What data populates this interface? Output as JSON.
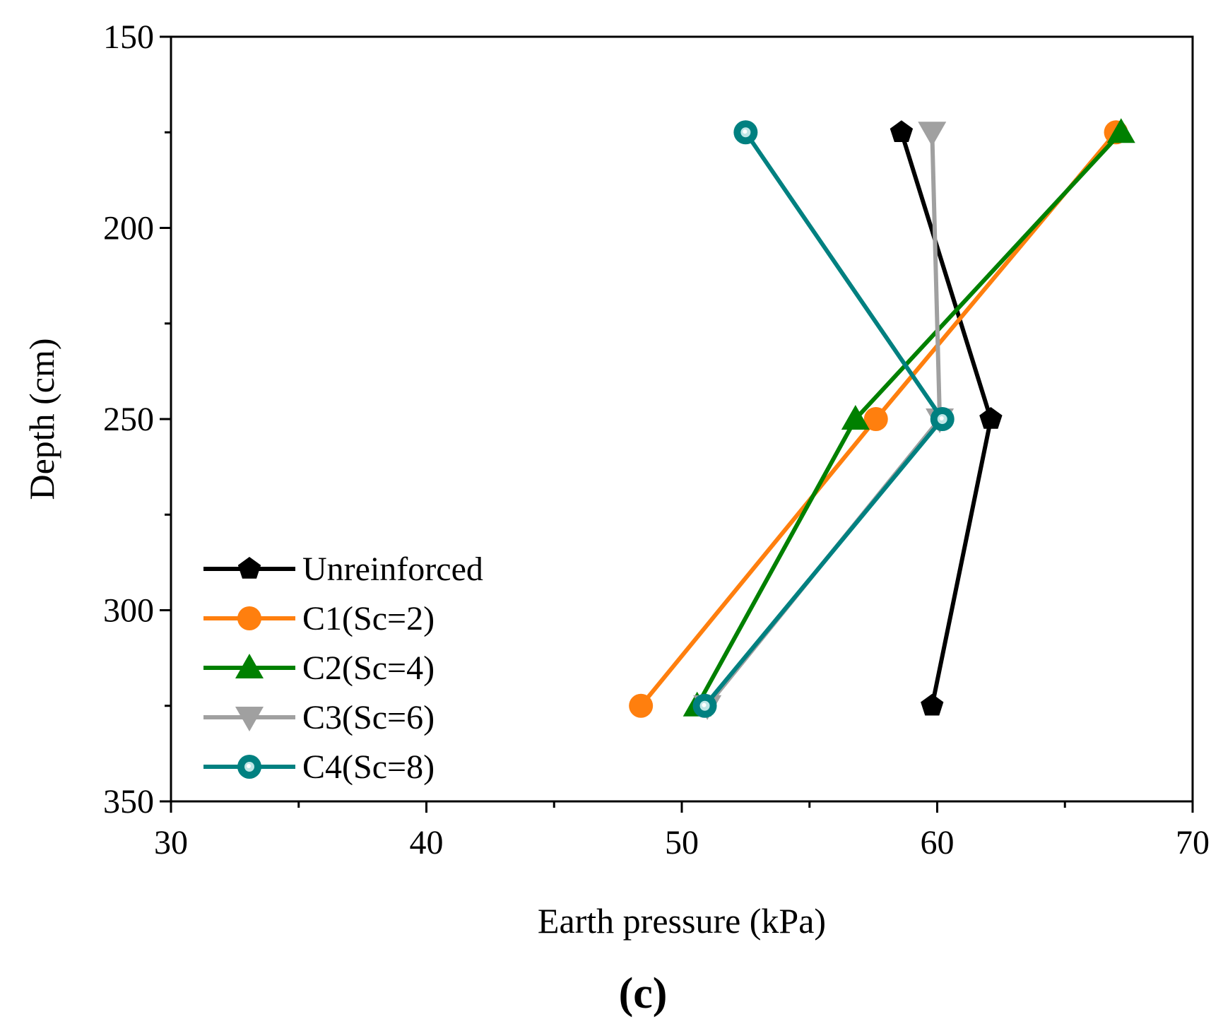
{
  "chart_data": {
    "type": "line",
    "title": "",
    "panel_label": "(c)",
    "xlabel": "Earth pressure (kPa)",
    "ylabel": "Depth (cm)",
    "xlim": [
      30,
      70
    ],
    "ylim": [
      150,
      350
    ],
    "y_inverted": true,
    "xticks": [
      30,
      40,
      50,
      60,
      70
    ],
    "yticks": [
      150,
      200,
      250,
      300,
      350
    ],
    "x_minor_step": 5,
    "y_minor_step": 25,
    "grid": false,
    "legend_position": "bottom-left",
    "series": [
      {
        "name": "Unreinforced",
        "color": "#000000",
        "marker": "pentagon",
        "points": [
          {
            "x": 58.6,
            "y": 175
          },
          {
            "x": 62.1,
            "y": 250
          },
          {
            "x": 59.8,
            "y": 325
          }
        ]
      },
      {
        "name": "C1(Sc=2)",
        "color": "#ff7f0e",
        "marker": "circle",
        "points": [
          {
            "x": 67.0,
            "y": 175
          },
          {
            "x": 57.6,
            "y": 250
          },
          {
            "x": 48.4,
            "y": 325
          }
        ]
      },
      {
        "name": "C2(Sc=4)",
        "color": "#008000",
        "marker": "triangle-up",
        "points": [
          {
            "x": 67.2,
            "y": 175
          },
          {
            "x": 56.8,
            "y": 250
          },
          {
            "x": 50.6,
            "y": 325
          }
        ]
      },
      {
        "name": "C3(Sc=6)",
        "color": "#a0a0a0",
        "marker": "triangle-down",
        "points": [
          {
            "x": 59.8,
            "y": 175
          },
          {
            "x": 60.1,
            "y": 250
          },
          {
            "x": 51.0,
            "y": 325
          }
        ]
      },
      {
        "name": "C4(Sc=8)",
        "color": "#008080",
        "marker": "ring",
        "points": [
          {
            "x": 52.5,
            "y": 175
          },
          {
            "x": 60.2,
            "y": 250
          },
          {
            "x": 50.9,
            "y": 325
          }
        ]
      }
    ]
  }
}
